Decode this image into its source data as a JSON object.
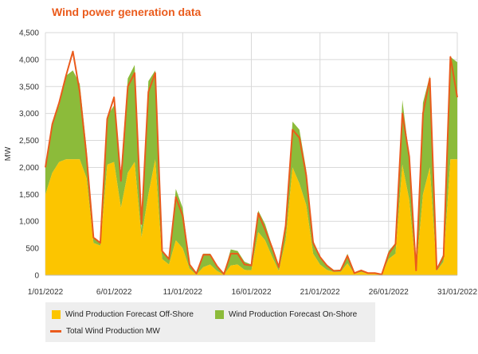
{
  "chart_data": {
    "type": "area",
    "title": "Wind power generation data",
    "xlabel": "",
    "ylabel": "MW",
    "ylim": [
      0,
      4500
    ],
    "yticks": [
      0,
      500,
      1000,
      1500,
      2000,
      2500,
      3000,
      3500,
      4000,
      4500
    ],
    "ytick_labels": [
      "0",
      "500",
      "1,000",
      "1,500",
      "2,000",
      "2,500",
      "3,000",
      "3,500",
      "4,000",
      "4,500"
    ],
    "xlim": [
      0,
      30
    ],
    "xticks": [
      0,
      5,
      10,
      15,
      20,
      25,
      30
    ],
    "xtick_labels": [
      "1/01/2022",
      "6/01/2022",
      "11/01/2022",
      "16/01/2022",
      "21/01/2022",
      "26/01/2022",
      "31/01/2022"
    ],
    "grid": true,
    "legend_position": "bottom",
    "colors": {
      "offshore": "#fcc500",
      "onshore": "#8cbb3a",
      "total": "#ea5b1c",
      "title": "#ea5b1c"
    },
    "x_unit": "days",
    "x": [
      0,
      0.5,
      1,
      1.5,
      2,
      2.5,
      3,
      3.5,
      4,
      4.5,
      5,
      5.5,
      6,
      6.5,
      7,
      7.5,
      8,
      8.5,
      9,
      9.5,
      10,
      10.5,
      11,
      11.5,
      12,
      12.5,
      13,
      13.5,
      14,
      14.5,
      15,
      15.5,
      16,
      16.5,
      17,
      17.5,
      18,
      18.5,
      19,
      19.5,
      20,
      20.5,
      21,
      21.5,
      22,
      22.5,
      23,
      23.5,
      24,
      24.5,
      25,
      25.5,
      26,
      26.5,
      27,
      27.5,
      28,
      28.5,
      29,
      29.5,
      30
    ],
    "series": [
      {
        "name": "Wind Production Forecast Off-Shore",
        "kind": "stacked-area",
        "values": [
          1500,
          1900,
          2100,
          2150,
          2150,
          2150,
          1800,
          600,
          550,
          2050,
          2100,
          1250,
          1900,
          2100,
          700,
          1500,
          2150,
          300,
          200,
          650,
          500,
          120,
          10,
          150,
          200,
          80,
          10,
          180,
          200,
          100,
          90,
          800,
          650,
          350,
          80,
          650,
          2000,
          1700,
          1300,
          400,
          200,
          100,
          60,
          60,
          220,
          30,
          60,
          30,
          30,
          10,
          300,
          400,
          2050,
          1400,
          60,
          1500,
          2000,
          80,
          250,
          2150,
          2150
        ]
      },
      {
        "name": "Wind Production Forecast On-Shore",
        "kind": "stacked-area",
        "values": [
          500,
          950,
          1050,
          1550,
          1650,
          1400,
          550,
          100,
          50,
          900,
          1050,
          650,
          1750,
          1800,
          150,
          2100,
          1650,
          150,
          100,
          950,
          750,
          100,
          30,
          250,
          200,
          100,
          20,
          300,
          250,
          150,
          110,
          400,
          300,
          200,
          80,
          250,
          850,
          1000,
          650,
          250,
          150,
          100,
          40,
          40,
          180,
          20,
          40,
          20,
          20,
          10,
          150,
          200,
          1200,
          800,
          40,
          1700,
          1700,
          50,
          150,
          1900,
          1800
        ]
      },
      {
        "name": "Total Wind Production MW",
        "kind": "line",
        "values": [
          2000,
          2800,
          3200,
          3700,
          4150,
          3400,
          2200,
          700,
          600,
          2900,
          3300,
          1750,
          3500,
          3750,
          950,
          3400,
          3750,
          450,
          300,
          1450,
          1100,
          200,
          30,
          380,
          380,
          170,
          20,
          400,
          400,
          200,
          180,
          1150,
          850,
          520,
          150,
          920,
          2700,
          2550,
          1850,
          600,
          340,
          180,
          80,
          90,
          360,
          40,
          90,
          40,
          40,
          15,
          400,
          580,
          3000,
          2200,
          90,
          3000,
          3650,
          110,
          350,
          4050,
          3300
        ]
      }
    ],
    "legend": [
      {
        "label": "Wind Production Forecast Off-Shore",
        "color": "#fcc500",
        "marker": "box"
      },
      {
        "label": "Wind Production Forecast On-Shore",
        "color": "#8cbb3a",
        "marker": "box"
      },
      {
        "label": "Total Wind Production MW",
        "color": "#ea5b1c",
        "marker": "line"
      }
    ]
  }
}
